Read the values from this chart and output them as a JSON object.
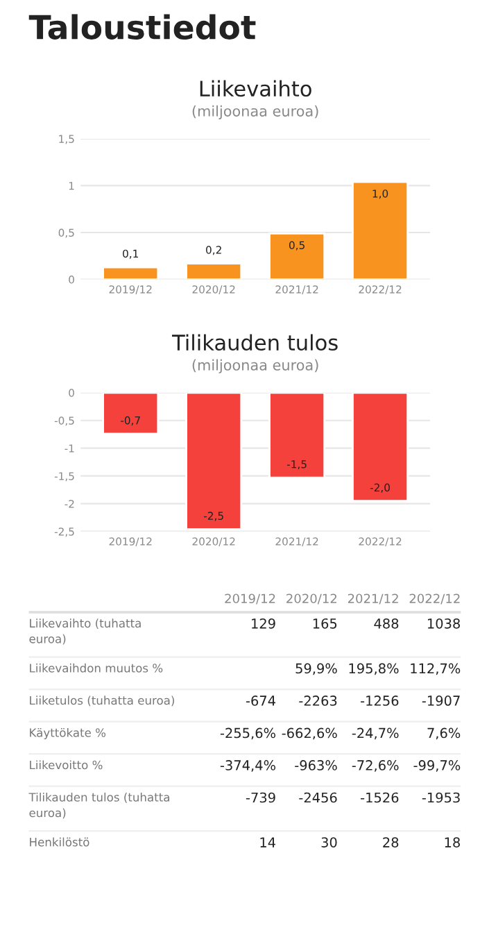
{
  "chart_data": [
    {
      "type": "bar",
      "title": "Liikevaihto",
      "subtitle": "(miljoonaa euroa)",
      "annotations": [
        "Taloustiedot"
      ],
      "categories": [
        "2019/12",
        "2020/12",
        "2021/12",
        "2022/12"
      ],
      "values": [
        0.13,
        0.17,
        0.49,
        1.04
      ],
      "color": "#f7931e",
      "value_labels": [
        "0,1",
        "0,2",
        "0,5",
        "1,0"
      ],
      "ylim": [
        0,
        1.5
      ],
      "yticks": [
        0,
        {
          "value": 0.5,
          "label": "0,5"
        },
        1,
        {
          "value": 1.5,
          "label": "1,5"
        }
      ],
      "grid": "y"
    },
    {
      "type": "bar",
      "title": "Tilikauden tulos",
      "subtitle": "(miljoonaa euroa)",
      "categories": [
        "2019/12",
        "2020/12",
        "2021/12",
        "2022/12"
      ],
      "values": [
        -0.74,
        -2.46,
        -1.53,
        -1.95
      ],
      "color": "#f5413b",
      "value_labels": [
        "-0,7",
        "-2,5",
        "-1,5",
        "-2,0"
      ],
      "ylim": [
        -2.5,
        0
      ],
      "yticks": [
        {
          "value": -2.5,
          "label": "-2,5"
        },
        -2,
        {
          "value": -1.5,
          "label": "-1,5"
        },
        -1,
        {
          "value": -0.5,
          "label": "-0,5"
        },
        0
      ],
      "grid": "y"
    },
    {
      "type": "other",
      "categories": [
        "2019/12",
        "2020/12",
        "2021/12",
        "2022/12"
      ],
      "y_categories": [
        "Liikevaihto (tuhatta euroa)",
        "Liikevaihdon muutos %",
        "Liiketulos (tuhatta euroa)",
        "Käyttökate %",
        "Liikevoitto %",
        "Tilikauden tulos (tuhatta euroa)",
        "Henkilöstö"
      ],
      "cell_labels": [
        [
          "129",
          "165",
          "488",
          "1038"
        ],
        [
          null,
          "59,9%",
          "195,8%",
          "112,7%"
        ],
        [
          "-674",
          "-2263",
          "-1256",
          "-1907"
        ],
        [
          "-255,6%",
          "-662,6%",
          "-24,7%",
          "7,6%"
        ],
        [
          "-374,4%",
          "-963%",
          "-72,6%",
          "-99,7%"
        ],
        [
          "-739",
          "-2456",
          "-1526",
          "-1953"
        ],
        [
          "14",
          "30",
          "28",
          "18"
        ]
      ]
    }
  ]
}
